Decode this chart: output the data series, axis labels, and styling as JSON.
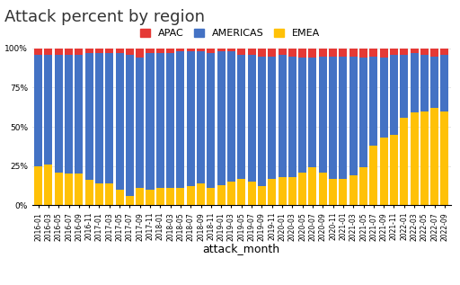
{
  "title": "Attack percent by region",
  "xlabel": "attack_month",
  "legend_labels": [
    "APAC",
    "AMERICAS",
    "EMEA"
  ],
  "legend_colors": [
    "#E53935",
    "#4472C4",
    "#FFC107"
  ],
  "months": [
    "2016-01",
    "2016-03",
    "2016-05",
    "2016-07",
    "2016-09",
    "2016-11",
    "2017-01",
    "2017-03",
    "2017-05",
    "2017-07",
    "2017-09",
    "2017-11",
    "2018-01",
    "2018-03",
    "2018-05",
    "2018-07",
    "2018-09",
    "2018-11",
    "2019-01",
    "2019-03",
    "2019-05",
    "2019-07",
    "2019-09",
    "2019-11",
    "2020-01",
    "2020-03",
    "2020-05",
    "2020-07",
    "2020-09",
    "2020-11",
    "2021-01",
    "2021-03",
    "2021-05",
    "2021-07",
    "2021-09",
    "2021-11",
    "2022-01",
    "2022-03",
    "2022-05",
    "2022-07",
    "2022-09"
  ],
  "emea": [
    0.25,
    0.26,
    0.21,
    0.2,
    0.2,
    0.16,
    0.14,
    0.14,
    0.1,
    0.06,
    0.11,
    0.1,
    0.11,
    0.11,
    0.11,
    0.12,
    0.14,
    0.11,
    0.13,
    0.15,
    0.17,
    0.15,
    0.12,
    0.17,
    0.18,
    0.18,
    0.21,
    0.24,
    0.21,
    0.17,
    0.17,
    0.19,
    0.24,
    0.38,
    0.43,
    0.45,
    0.56,
    0.59,
    0.6,
    0.62,
    0.6
  ],
  "americas": [
    0.71,
    0.7,
    0.75,
    0.76,
    0.76,
    0.81,
    0.83,
    0.83,
    0.87,
    0.9,
    0.83,
    0.87,
    0.86,
    0.86,
    0.87,
    0.86,
    0.84,
    0.86,
    0.85,
    0.83,
    0.79,
    0.81,
    0.83,
    0.78,
    0.78,
    0.77,
    0.73,
    0.7,
    0.74,
    0.78,
    0.78,
    0.76,
    0.7,
    0.57,
    0.51,
    0.51,
    0.4,
    0.38,
    0.36,
    0.33,
    0.36
  ],
  "apac": [
    0.04,
    0.04,
    0.04,
    0.04,
    0.04,
    0.03,
    0.03,
    0.03,
    0.03,
    0.04,
    0.06,
    0.03,
    0.03,
    0.03,
    0.02,
    0.02,
    0.02,
    0.03,
    0.02,
    0.02,
    0.04,
    0.04,
    0.05,
    0.05,
    0.04,
    0.05,
    0.06,
    0.06,
    0.05,
    0.05,
    0.05,
    0.05,
    0.06,
    0.05,
    0.06,
    0.04,
    0.04,
    0.03,
    0.04,
    0.05,
    0.04
  ],
  "bg_color": "#ffffff",
  "yticks": [
    0,
    0.25,
    0.5,
    0.75,
    1.0
  ],
  "ytick_labels": [
    "0%",
    "25%",
    "50%",
    "75%",
    "100%"
  ],
  "title_fontsize": 13,
  "xlabel_fontsize": 9,
  "tick_fontsize": 5.5,
  "legend_fontsize": 8
}
